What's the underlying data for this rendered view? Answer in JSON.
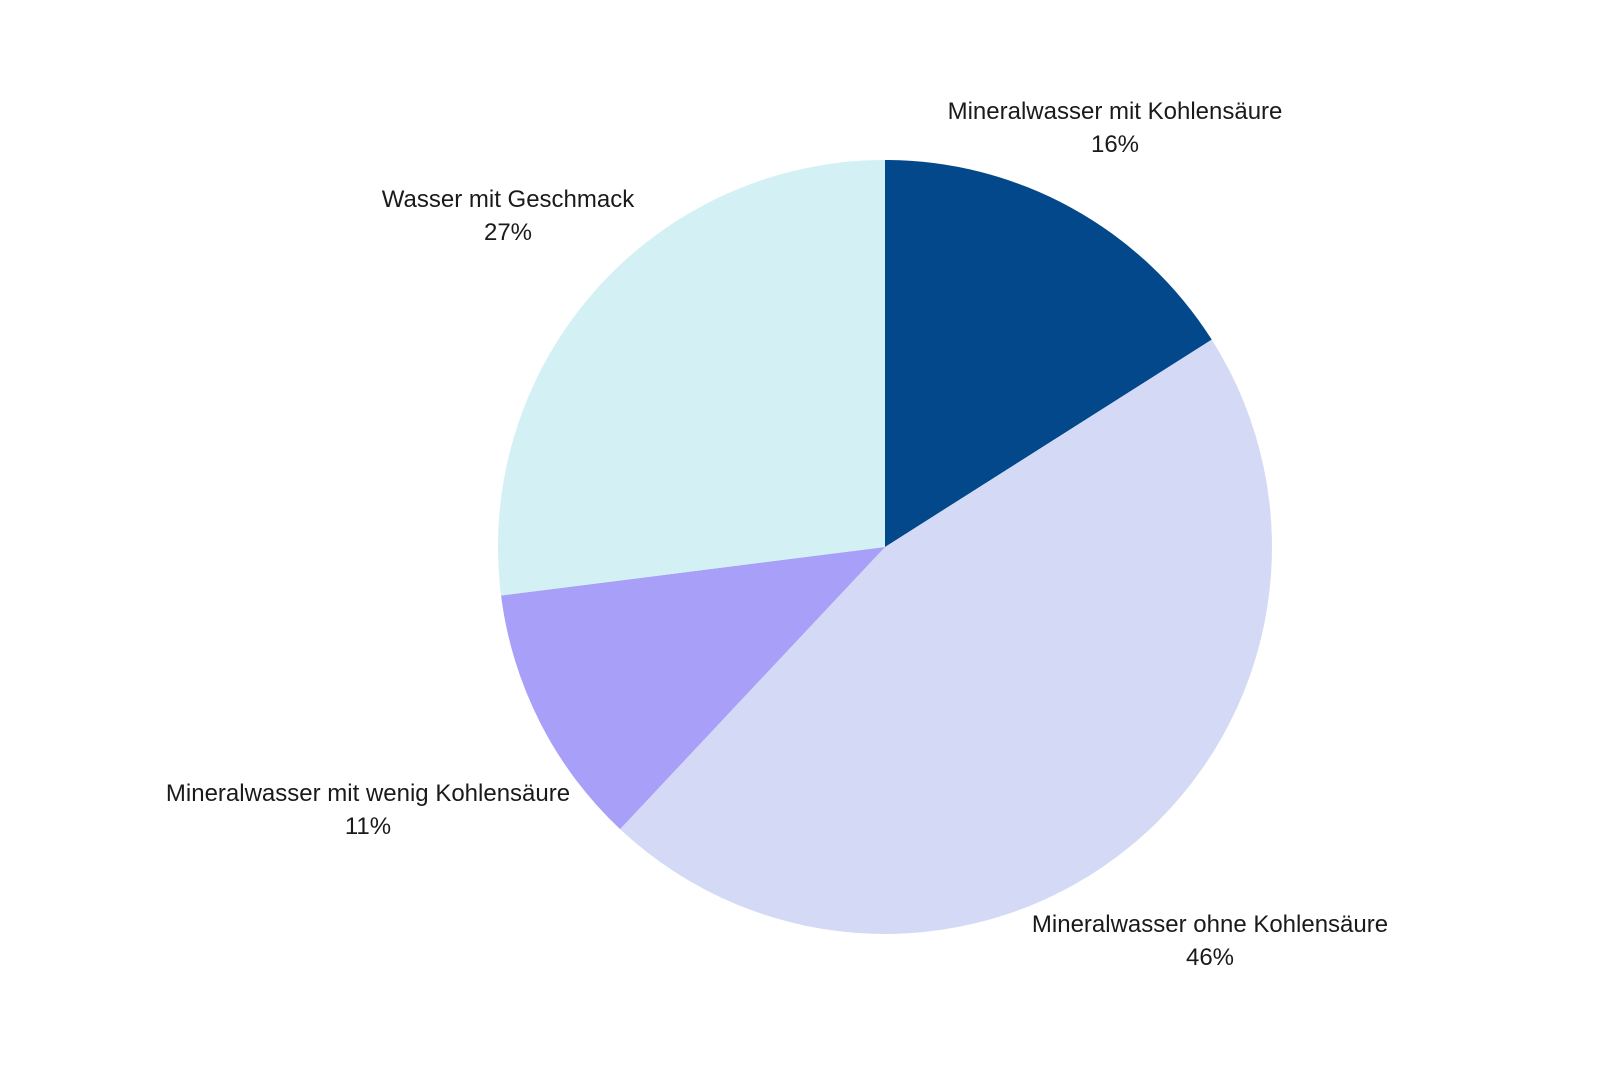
{
  "chart_data": {
    "type": "pie",
    "title": "",
    "start_angle_deg": 0,
    "direction": "clockwise",
    "slices": [
      {
        "label": "Mineralwasser mit Kohlensäure",
        "value": 16,
        "value_label": "16%",
        "color": "#02488B"
      },
      {
        "label": "Mineralwasser ohne Kohlensäure",
        "value": 46,
        "value_label": "46%",
        "color": "#D4DAF5"
      },
      {
        "label": "Mineralwasser mit wenig Kohlensäure",
        "value": 11,
        "value_label": "11%",
        "color": "#A89FF8"
      },
      {
        "label": "Wasser mit Geschmack",
        "value": 27,
        "value_label": "27%",
        "color": "#D3F0F5"
      }
    ]
  }
}
